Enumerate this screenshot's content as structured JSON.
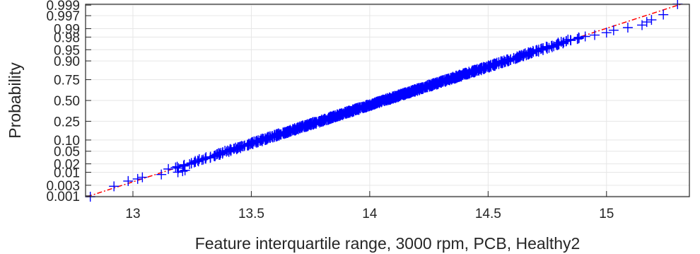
{
  "chart_data": {
    "type": "scatter",
    "subtype": "normal-probability-plot",
    "title": "",
    "xlabel": "Feature interquartile range, 3000 rpm, PCB, Healthy2",
    "ylabel": "Probability",
    "xlim": [
      12.8,
      15.35
    ],
    "x_ticks": [
      13,
      13.5,
      14,
      14.5,
      15
    ],
    "x_tick_labels": [
      "13",
      "13.5",
      "14",
      "14.5",
      "15"
    ],
    "y_scale": "normal-probability",
    "y_ticks": [
      0.001,
      0.003,
      0.01,
      0.02,
      0.05,
      0.1,
      0.25,
      0.5,
      0.75,
      0.9,
      0.95,
      0.98,
      0.99,
      0.997,
      0.999
    ],
    "y_tick_labels": [
      "0.001",
      "0.003",
      "0.01",
      "0.02",
      "0.05",
      "0.10",
      "0.25",
      "0.50",
      "0.75",
      "0.90",
      "0.95",
      "0.98",
      "0.99",
      "0.997",
      "0.999"
    ],
    "grid": true,
    "reference_line": {
      "style": "dash-dot",
      "color": "#ff0000",
      "mean": 14.06,
      "sd": 0.402
    },
    "marker": {
      "symbol": "+",
      "color": "#0000ff"
    },
    "sample_size": 1100,
    "outlier_points": [
      {
        "x": 12.82,
        "p": 0.00091
      },
      {
        "x": 12.92,
        "p": 0.0027
      },
      {
        "x": 12.98,
        "p": 0.0045
      },
      {
        "x": 13.02,
        "p": 0.0055
      },
      {
        "x": 13.04,
        "p": 0.0064
      },
      {
        "x": 13.12,
        "p": 0.0082
      },
      {
        "x": 13.19,
        "p": 0.01
      },
      {
        "x": 13.21,
        "p": 0.0109
      },
      {
        "x": 13.22,
        "p": 0.0118
      },
      {
        "x": 14.91,
        "p": 0.981
      },
      {
        "x": 14.95,
        "p": 0.983
      },
      {
        "x": 15.0,
        "p": 0.986
      },
      {
        "x": 15.03,
        "p": 0.9886
      },
      {
        "x": 15.09,
        "p": 0.9909
      },
      {
        "x": 15.15,
        "p": 0.9927
      },
      {
        "x": 15.17,
        "p": 0.9945
      },
      {
        "x": 15.19,
        "p": 0.9955
      },
      {
        "x": 15.24,
        "p": 0.9973
      },
      {
        "x": 15.3,
        "p": 0.9991
      }
    ]
  },
  "colors": {
    "marker": "#0000ff",
    "reference_line": "#ff0000",
    "axis": "#262626",
    "grid": "#e6e6e6"
  }
}
